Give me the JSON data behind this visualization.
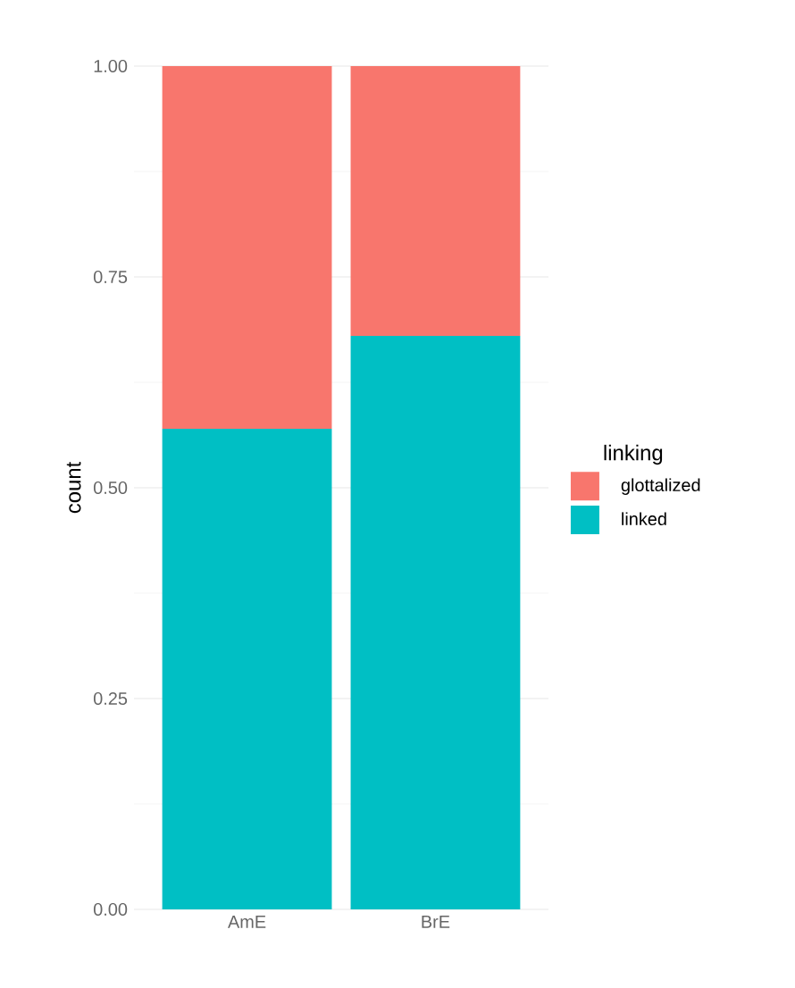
{
  "chart_data": {
    "type": "bar",
    "stacked": true,
    "ylabel": "count",
    "legend_title": "linking",
    "categories": [
      "AmE",
      "BrE"
    ],
    "series": [
      {
        "name": "linked",
        "color": "#00bfc4",
        "values": [
          0.57,
          0.68
        ]
      },
      {
        "name": "glottalized",
        "color": "#f8766d",
        "values": [
          0.43,
          0.32
        ]
      }
    ],
    "ylim": [
      0,
      1
    ],
    "yticks": [
      {
        "value": 0,
        "label": "0.00"
      },
      {
        "value": 0.25,
        "label": "0.25"
      },
      {
        "value": 0.5,
        "label": "0.50"
      },
      {
        "value": 0.75,
        "label": "0.75"
      },
      {
        "value": 1,
        "label": "1.00"
      }
    ],
    "grid": "y",
    "legend": "right"
  }
}
